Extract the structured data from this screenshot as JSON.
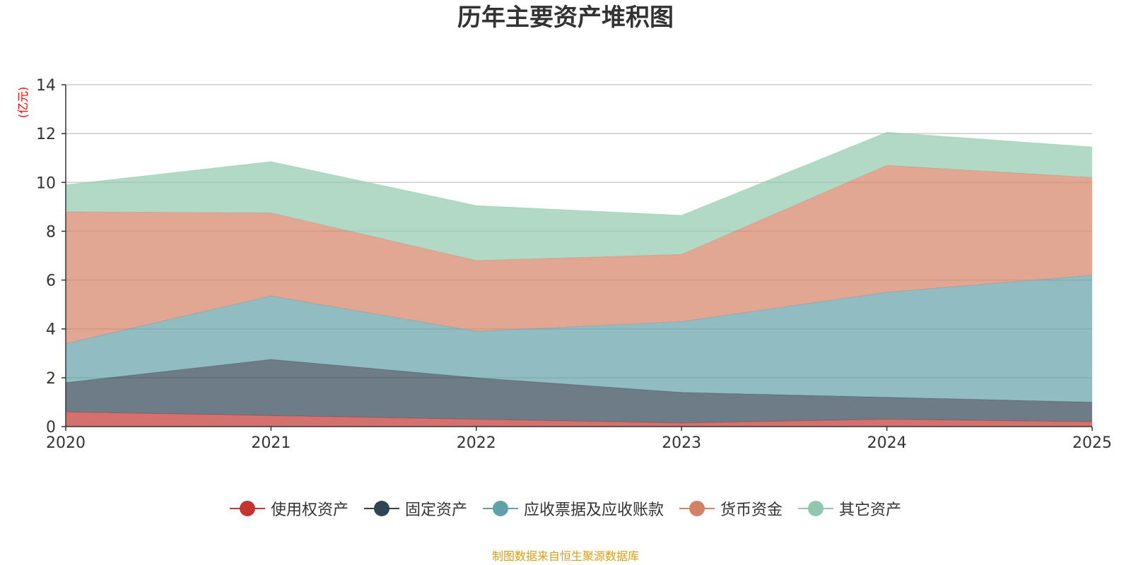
{
  "chart_data": {
    "type": "area",
    "stacked": true,
    "title": "历年主要资产堆积图",
    "unit_label": "(亿元)",
    "x": [
      "2020",
      "2021",
      "2022",
      "2023",
      "2024",
      "2025"
    ],
    "ylim": [
      0,
      14
    ],
    "yticks": [
      "0",
      "2",
      "4",
      "6",
      "8",
      "10",
      "12",
      "14"
    ],
    "grid": true,
    "legend_position": "bottom",
    "series": [
      {
        "name": "使用权资产",
        "color": "#c23531",
        "values": [
          0.6,
          0.45,
          0.3,
          0.15,
          0.3,
          0.2
        ]
      },
      {
        "name": "固定资产",
        "color": "#2f4554",
        "values": [
          1.2,
          2.3,
          1.7,
          1.25,
          0.9,
          0.8
        ]
      },
      {
        "name": "应收票据及应收账款",
        "color": "#61a0a8",
        "values": [
          1.6,
          2.6,
          1.9,
          2.9,
          4.3,
          5.2
        ]
      },
      {
        "name": "货币资金",
        "color": "#d48265",
        "values": [
          5.4,
          3.4,
          2.9,
          2.75,
          5.2,
          4.0
        ]
      },
      {
        "name": "其它资产",
        "color": "#91c7ae",
        "values": [
          1.1,
          2.1,
          2.25,
          1.6,
          1.35,
          1.25
        ]
      }
    ]
  },
  "source_note": "制图数据来自恒生聚源数据库",
  "source_note_color": "#d4a017",
  "unit_label_color": "#ff0000",
  "axis_color": "#333333",
  "grid_color": "#cccccc"
}
